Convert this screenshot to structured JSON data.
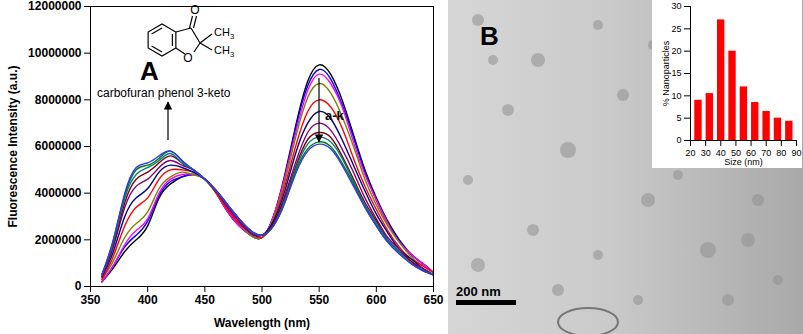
{
  "chart_data": [
    {
      "type": "line",
      "x_label": "Wavelength (nm)",
      "y_label": "Fluorescence Intensity (a.u.)",
      "annotations": [
        "A",
        "carbofuran phenol 3-keto",
        "a-k",
        "O",
        "O",
        "CH3",
        "CH3"
      ],
      "xlim": [
        350,
        650
      ],
      "xticks": [
        350,
        400,
        450,
        500,
        550,
        600,
        650
      ],
      "ylim": [
        0,
        12000000
      ],
      "yticks": [
        0,
        2000000,
        4000000,
        6000000,
        8000000,
        10000000,
        12000000
      ],
      "grid": false,
      "x": [
        360,
        370,
        380,
        390,
        400,
        410,
        420,
        430,
        440,
        450,
        460,
        470,
        480,
        490,
        500,
        510,
        520,
        530,
        540,
        550,
        560,
        570,
        580,
        590,
        600,
        610,
        620,
        630,
        640,
        650
      ],
      "series": [
        {
          "color": "#000000",
          "values": [
            200000,
            800000,
            1500000,
            2000000,
            2600000,
            3800000,
            4400000,
            4700000,
            4800000,
            4600000,
            4000000,
            3200000,
            2600000,
            2200000,
            2100000,
            3000000,
            4800000,
            7000000,
            8800000,
            9500000,
            9100000,
            8000000,
            6500000,
            5000000,
            3800000,
            2800000,
            2000000,
            1400000,
            1000000,
            600000
          ]
        },
        {
          "color": "#0000ff",
          "values": [
            200000,
            900000,
            1700000,
            2200000,
            2800000,
            3900000,
            4500000,
            4700000,
            4800000,
            4600000,
            4000000,
            3200000,
            2600000,
            2200000,
            2100000,
            3000000,
            4700000,
            6900000,
            8600000,
            9300000,
            8900000,
            7800000,
            6400000,
            4900000,
            3700000,
            2700000,
            2000000,
            1400000,
            1000000,
            600000
          ]
        },
        {
          "color": "#ff00ff",
          "values": [
            200000,
            900000,
            1800000,
            2400000,
            2900000,
            4000000,
            4600000,
            4800000,
            4800000,
            4600000,
            4000000,
            3200000,
            2600000,
            2200000,
            2100000,
            3000000,
            4700000,
            6700000,
            8400000,
            9100000,
            8700000,
            7700000,
            6200000,
            4800000,
            3700000,
            2700000,
            1900000,
            1400000,
            1000000,
            600000
          ]
        },
        {
          "color": "#808000",
          "values": [
            300000,
            1100000,
            2100000,
            2700000,
            3200000,
            4200000,
            4700000,
            4900000,
            4800000,
            4600000,
            4000000,
            3300000,
            2700000,
            2200000,
            2100000,
            2900000,
            4500000,
            6500000,
            8100000,
            8700000,
            8300000,
            7300000,
            6000000,
            4600000,
            3500000,
            2600000,
            1900000,
            1300000,
            900000,
            600000
          ]
        },
        {
          "color": "#ff0000",
          "values": [
            300000,
            1300000,
            2600000,
            3400000,
            3800000,
            4600000,
            5000000,
            5000000,
            4900000,
            4600000,
            4000000,
            3300000,
            2700000,
            2300000,
            2100000,
            2800000,
            4300000,
            6100000,
            7500000,
            8000000,
            7700000,
            6800000,
            5500000,
            4300000,
            3300000,
            2400000,
            1700000,
            1200000,
            900000,
            600000
          ]
        },
        {
          "color": "#000080",
          "values": [
            400000,
            1500000,
            3000000,
            3800000,
            4200000,
            4900000,
            5200000,
            5100000,
            4900000,
            4600000,
            4100000,
            3400000,
            2800000,
            2300000,
            2200000,
            2800000,
            4100000,
            5800000,
            7000000,
            7500000,
            7200000,
            6300000,
            5200000,
            4100000,
            3100000,
            2300000,
            1600000,
            1200000,
            800000,
            500000
          ]
        },
        {
          "color": "#800080",
          "values": [
            400000,
            1700000,
            3400000,
            4300000,
            4600000,
            5100000,
            5400000,
            5200000,
            5000000,
            4600000,
            4100000,
            3400000,
            2800000,
            2300000,
            2200000,
            2700000,
            3900000,
            5400000,
            6600000,
            7000000,
            6700000,
            5900000,
            4900000,
            3800000,
            2900000,
            2100000,
            1600000,
            1100000,
            800000,
            500000
          ]
        },
        {
          "color": "#800000",
          "values": [
            500000,
            1800000,
            3600000,
            4600000,
            4900000,
            5300000,
            5600000,
            5300000,
            5000000,
            4600000,
            4100000,
            3500000,
            2900000,
            2400000,
            2200000,
            2700000,
            3800000,
            5200000,
            6300000,
            6600000,
            6400000,
            5600000,
            4600000,
            3600000,
            2800000,
            2000000,
            1500000,
            1100000,
            700000,
            500000
          ]
        },
        {
          "color": "#008080",
          "values": [
            500000,
            1900000,
            3800000,
            4800000,
            5100000,
            5400000,
            5700000,
            5300000,
            5000000,
            4600000,
            4100000,
            3500000,
            2900000,
            2400000,
            2200000,
            2600000,
            3700000,
            5100000,
            6100000,
            6400000,
            6200000,
            5500000,
            4500000,
            3500000,
            2700000,
            2000000,
            1500000,
            1000000,
            700000,
            500000
          ]
        },
        {
          "color": "#008000",
          "values": [
            500000,
            2000000,
            3900000,
            5000000,
            5200000,
            5500000,
            5800000,
            5400000,
            5000000,
            4600000,
            4100000,
            3500000,
            2900000,
            2400000,
            2200000,
            2600000,
            3600000,
            5000000,
            5900000,
            6200000,
            6000000,
            5300000,
            4400000,
            3400000,
            2600000,
            1900000,
            1400000,
            1000000,
            700000,
            500000
          ]
        },
        {
          "color": "#3333ff",
          "values": [
            500000,
            2000000,
            4000000,
            5100000,
            5300000,
            5600000,
            5800000,
            5400000,
            5000000,
            4600000,
            4100000,
            3500000,
            2900000,
            2400000,
            2200000,
            2600000,
            3600000,
            4900000,
            5800000,
            6100000,
            5900000,
            5200000,
            4300000,
            3400000,
            2600000,
            1900000,
            1400000,
            1000000,
            700000,
            500000
          ]
        }
      ]
    },
    {
      "type": "histogram",
      "x_label": "Size (nm)",
      "y_label": "% Nanoparticles",
      "annotations": [
        "B",
        "200 nm"
      ],
      "color": "#ff0000",
      "xlim": [
        20,
        90
      ],
      "xticks": [
        20,
        30,
        40,
        50,
        60,
        70,
        80,
        90
      ],
      "ylim": [
        0,
        30
      ],
      "yticks": [
        0,
        5,
        10,
        15,
        20,
        25,
        30
      ],
      "grid": false,
      "bins": [
        21.5,
        29,
        36.5,
        44,
        51.5,
        59,
        66.5,
        74,
        81.5,
        89
      ],
      "values": [
        9,
        10.5,
        27,
        20,
        12,
        8.5,
        6.5,
        5,
        4.3
      ]
    }
  ]
}
